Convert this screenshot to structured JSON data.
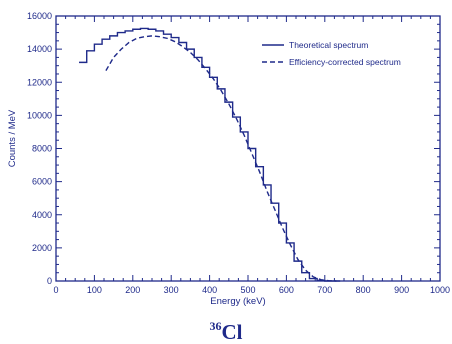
{
  "chart_data": {
    "type": "line",
    "xlabel": "Energy (keV)",
    "ylabel": "Counts / MeV",
    "xlim": [
      0,
      1000
    ],
    "ylim": [
      0,
      16000
    ],
    "xticks": [
      0,
      100,
      200,
      300,
      400,
      500,
      600,
      700,
      800,
      900,
      1000
    ],
    "xtick_labels": [
      "0",
      "100",
      "200",
      "300",
      "400",
      "500",
      "600",
      "700",
      "800",
      "900",
      "1000"
    ],
    "yticks": [
      0,
      2000,
      4000,
      6000,
      8000,
      10000,
      12000,
      14000,
      16000
    ],
    "ytick_labels": [
      "0",
      "2000",
      "4000",
      "6000",
      "8000",
      "10000",
      "12000",
      "14000",
      "16000"
    ],
    "legend_position": "top-right",
    "grid": false,
    "series": [
      {
        "name": "Theoretical spectrum",
        "style": "histogram",
        "x": [
          70,
          90,
          110,
          130,
          150,
          170,
          190,
          210,
          230,
          250,
          270,
          290,
          310,
          330,
          350,
          370,
          390,
          410,
          430,
          450,
          470,
          490,
          510,
          530,
          550,
          570,
          590,
          610,
          630,
          650,
          670,
          690,
          710,
          730
        ],
        "y": [
          13200,
          13900,
          14300,
          14600,
          14800,
          15000,
          15100,
          15200,
          15250,
          15200,
          15100,
          14900,
          14700,
          14400,
          14000,
          13500,
          12900,
          12300,
          11600,
          10800,
          9900,
          9000,
          8000,
          6900,
          5800,
          4700,
          3500,
          2300,
          1200,
          500,
          150,
          30,
          0,
          0
        ]
      },
      {
        "name": "Efficiency-corrected spectrum",
        "style": "dashed",
        "x": [
          130,
          150,
          170,
          190,
          210,
          230,
          250,
          270,
          290,
          310,
          330,
          350,
          370,
          390,
          410,
          430,
          450,
          470,
          490,
          510,
          530,
          550,
          570,
          590,
          610,
          630,
          650,
          670,
          690,
          710,
          730
        ],
        "y": [
          12700,
          13500,
          14000,
          14400,
          14650,
          14750,
          14800,
          14750,
          14650,
          14450,
          14150,
          13800,
          13350,
          12800,
          12200,
          11500,
          10700,
          9800,
          8800,
          7700,
          6600,
          5400,
          4300,
          3200,
          2200,
          1300,
          650,
          250,
          80,
          20,
          0
        ]
      }
    ]
  },
  "caption": {
    "mass_number": "36",
    "element": "Cl"
  },
  "colors": {
    "ink": "#1f2a8a"
  }
}
